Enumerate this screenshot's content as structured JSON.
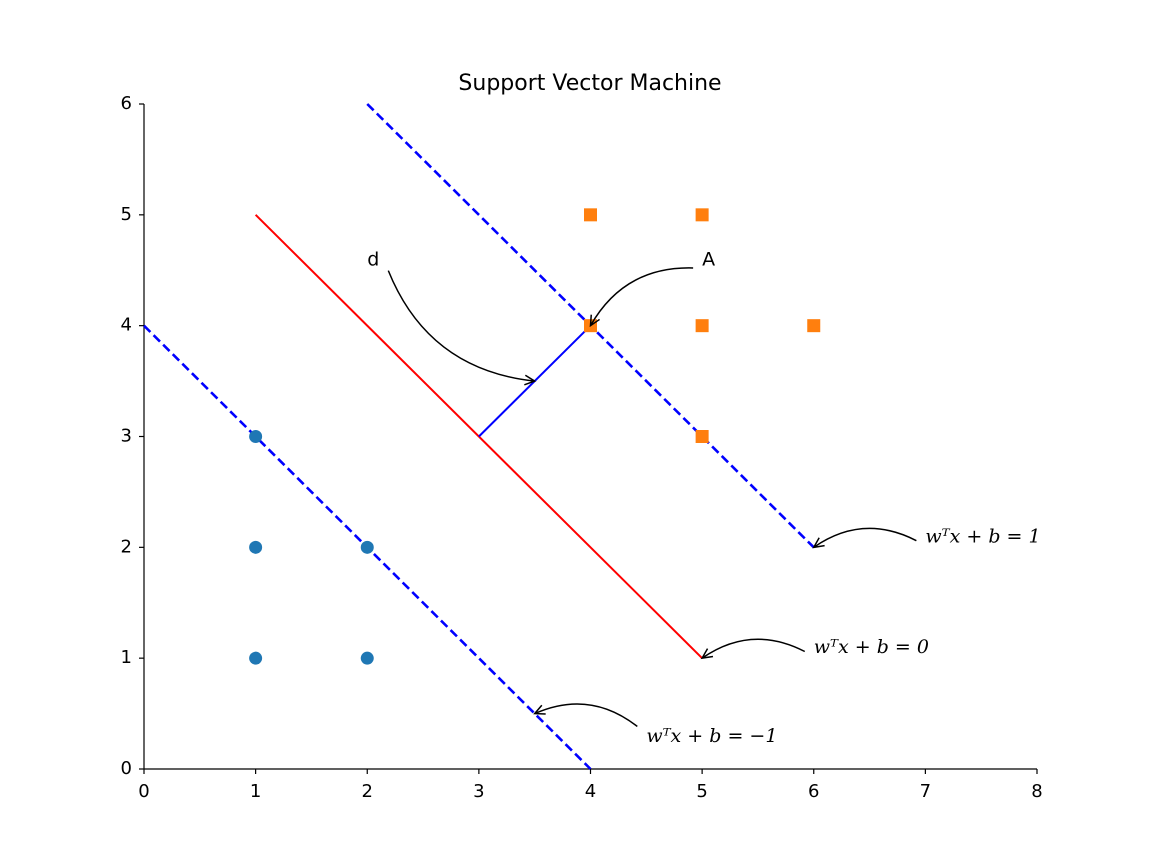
{
  "chart_data": {
    "type": "scatter",
    "title": "Support Vector Machine",
    "xlim": [
      0,
      8
    ],
    "ylim": [
      0,
      6
    ],
    "xticks": [
      0,
      1,
      2,
      3,
      4,
      5,
      6,
      7,
      8
    ],
    "yticks": [
      0,
      1,
      2,
      3,
      4,
      5,
      6
    ],
    "series": [
      {
        "color": "#1f77b4",
        "marker": "circle",
        "x": [
          1,
          1,
          2,
          1,
          2
        ],
        "values": [
          3,
          2,
          2,
          1,
          1
        ]
      },
      {
        "color": "#ff7f0e",
        "marker": "square",
        "x": [
          4,
          5,
          4,
          5,
          6,
          5
        ],
        "values": [
          5,
          5,
          4,
          4,
          4,
          3
        ]
      }
    ],
    "lines": [
      {
        "color": "#ff0000",
        "linestyle": "solid",
        "x": [
          1,
          5
        ],
        "values": [
          5,
          1
        ]
      },
      {
        "color": "#0000ff",
        "linestyle": "dashed",
        "x": [
          2,
          6
        ],
        "values": [
          6,
          2
        ]
      },
      {
        "color": "#0000ff",
        "linestyle": "dashed",
        "x": [
          0,
          4
        ],
        "values": [
          4,
          0
        ]
      },
      {
        "color": "#0000ff",
        "linestyle": "solid",
        "x": [
          3,
          4
        ],
        "values": [
          3,
          4
        ]
      }
    ],
    "annotations": [
      {
        "text": "d",
        "xy": [
          3.5,
          3.5
        ],
        "xytext": [
          2,
          4.5
        ]
      },
      {
        "text": "A",
        "xy": [
          4,
          4
        ],
        "xytext": [
          5,
          4.5
        ]
      },
      {
        "text": "wᵀx + b = 1",
        "xy": [
          6,
          2
        ],
        "xytext": [
          7,
          2
        ]
      },
      {
        "text": "wᵀx + b = 0",
        "xy": [
          5,
          1
        ],
        "xytext": [
          6,
          1
        ]
      },
      {
        "text": "wᵀx + b = −1",
        "xy": [
          3.5,
          0.5
        ],
        "xytext": [
          4.5,
          0.2
        ]
      }
    ]
  }
}
